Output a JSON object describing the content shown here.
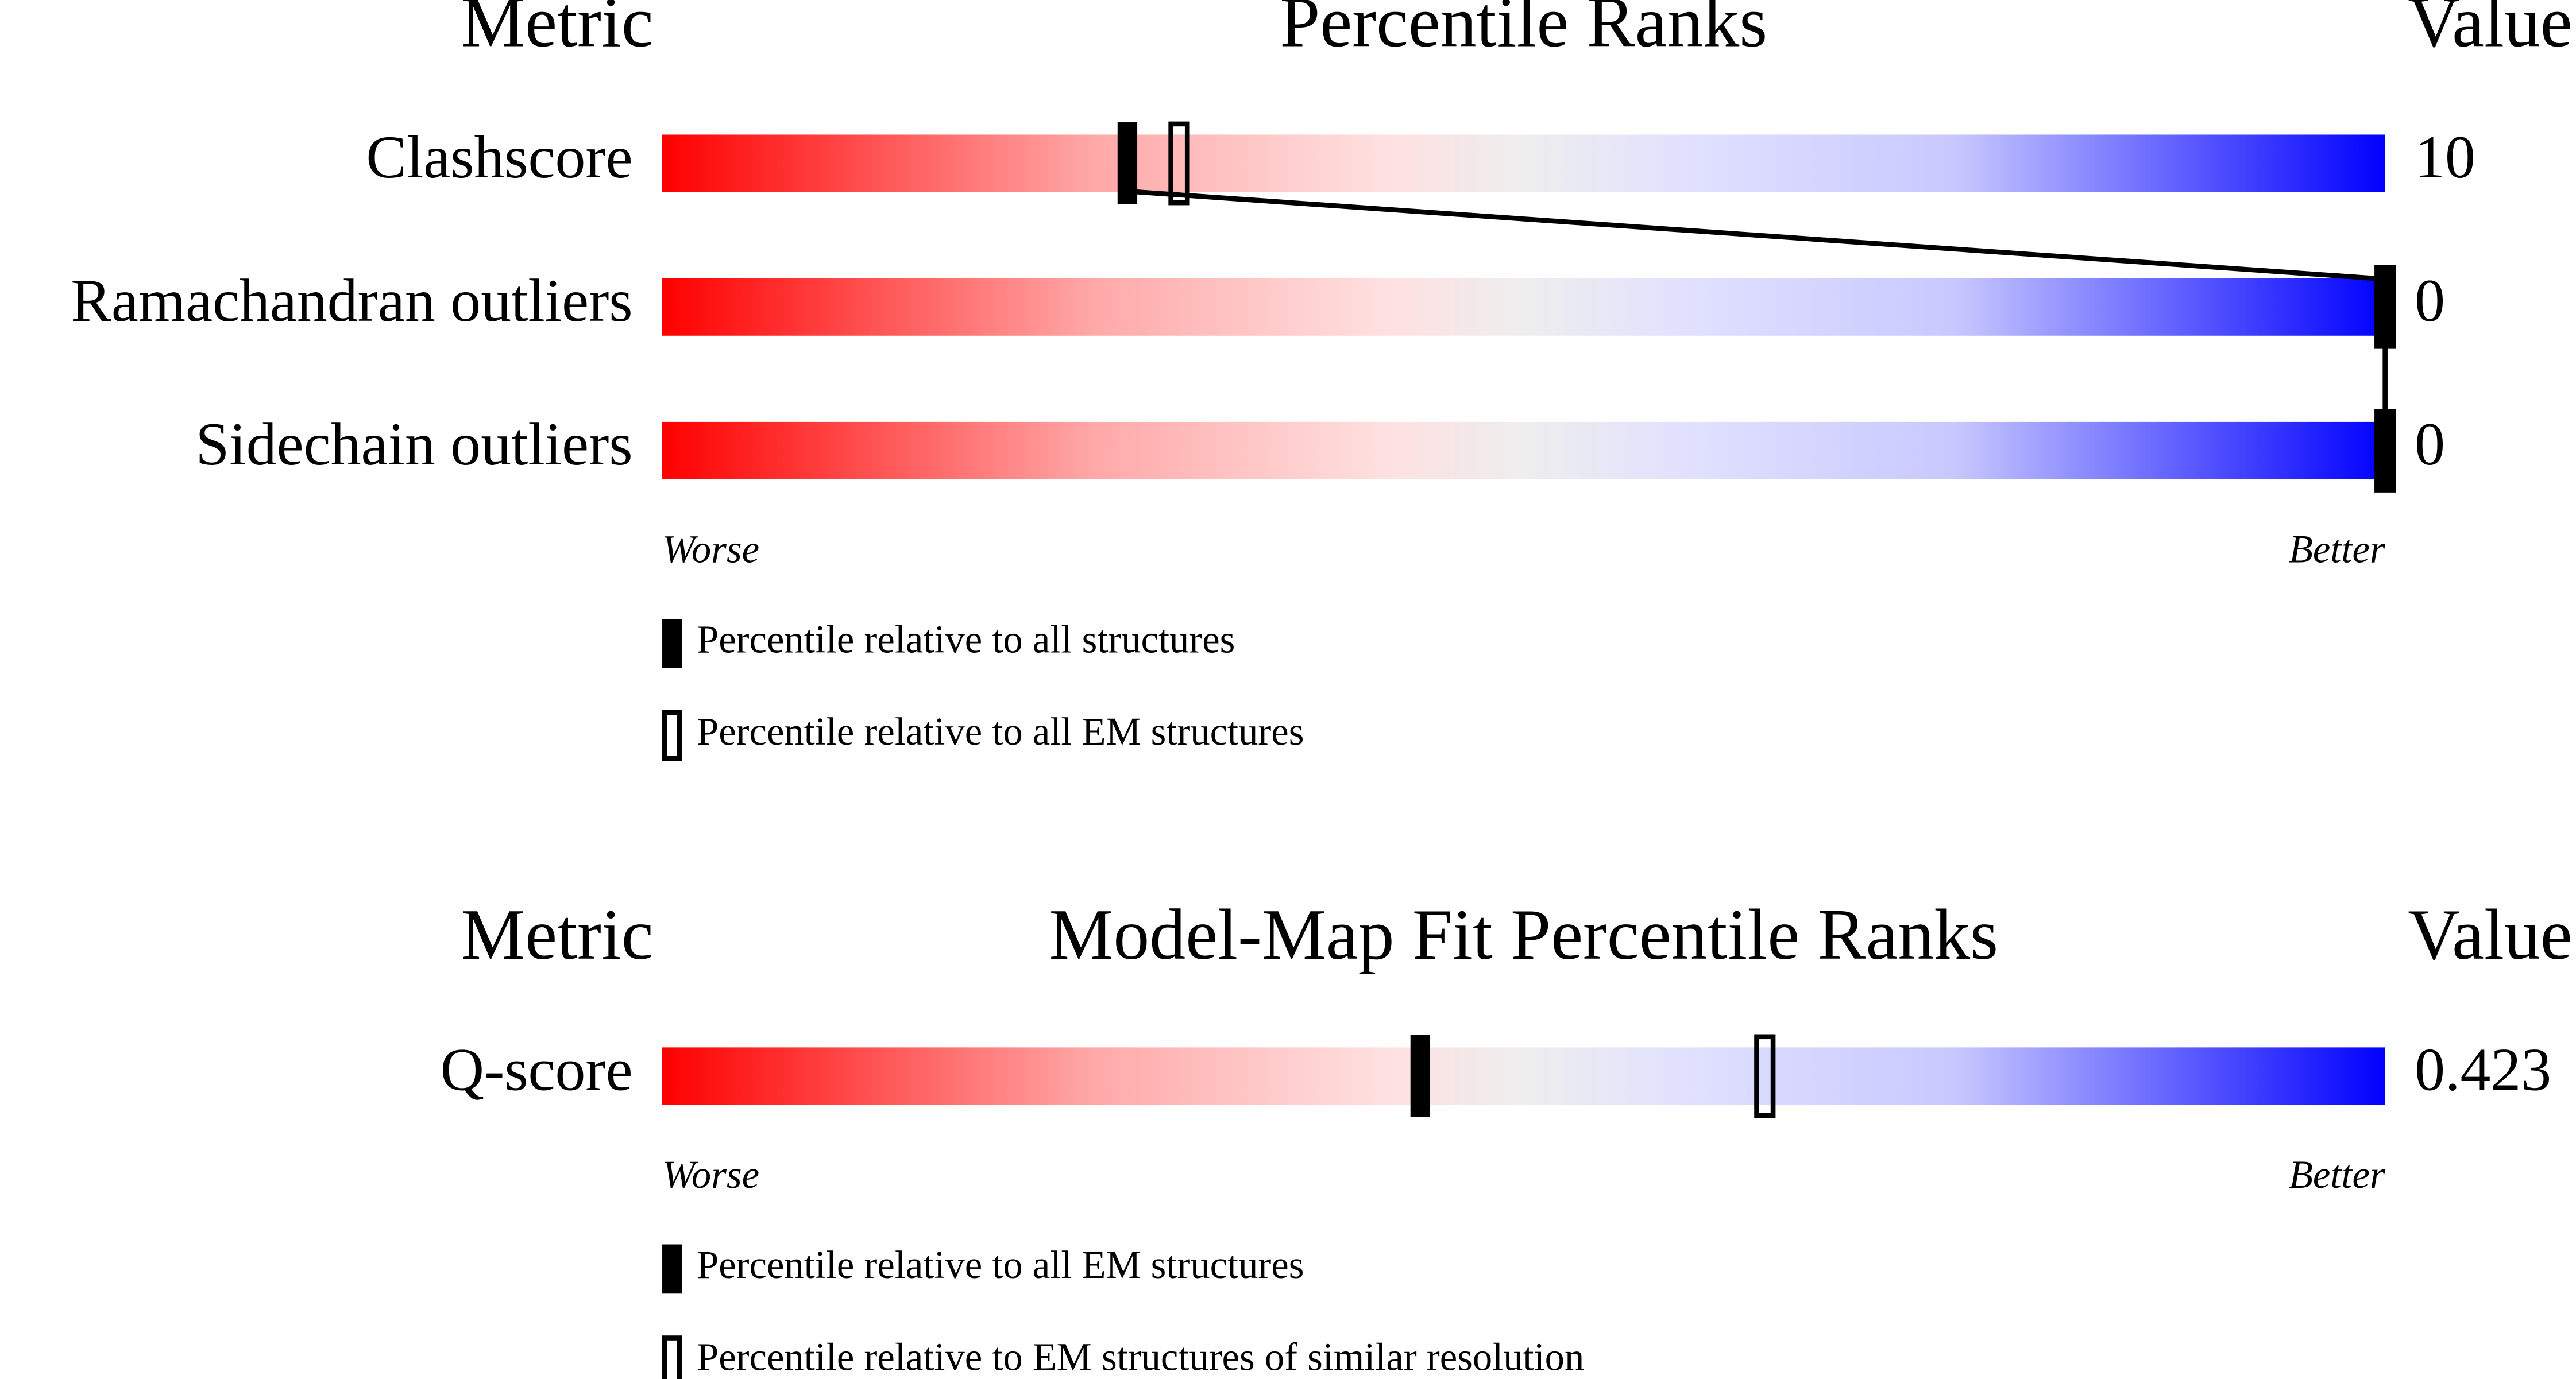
{
  "chart_data": [
    {
      "type": "percentile-slider",
      "metric_header": "Metric",
      "title": "Percentile Ranks",
      "value_header": "Value",
      "categories": [
        "Clashscore",
        "Ramachandran outliers",
        "Sidechain outliers"
      ],
      "metric_values": [
        10,
        0,
        0
      ],
      "xlim": [
        0,
        100
      ],
      "worse_label": "Worse",
      "better_label": "Better",
      "series": [
        {
          "name": "Percentile relative to all structures",
          "color": "#000000",
          "style": "filled",
          "values": [
            27,
            100,
            100
          ]
        },
        {
          "name": "Percentile relative to all EM structures",
          "color": "#000000",
          "style": "open",
          "values": [
            30,
            100,
            100
          ]
        }
      ]
    },
    {
      "type": "percentile-slider",
      "metric_header": "Metric",
      "title": "Model-Map Fit Percentile Ranks",
      "value_header": "Value",
      "categories": [
        "Q-score"
      ],
      "metric_values": [
        0.423
      ],
      "xlim": [
        0,
        100
      ],
      "worse_label": "Worse",
      "better_label": "Better",
      "series": [
        {
          "name": "Percentile relative to all EM structures",
          "color": "#000000",
          "style": "filled",
          "values": [
            44
          ]
        },
        {
          "name": "Percentile relative to EM structures of similar resolution",
          "color": "#000000",
          "style": "open",
          "values": [
            64
          ]
        }
      ]
    }
  ]
}
